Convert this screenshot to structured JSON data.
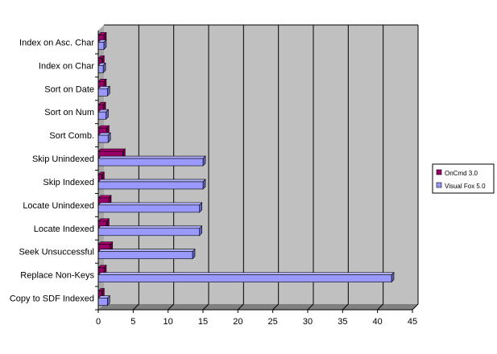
{
  "chart_data": {
    "type": "bar",
    "orientation": "horizontal",
    "style": "3d-clustered",
    "categories": [
      "Index on Asc. Char",
      "Index on Char",
      "Sort on Date",
      "Sort on Num",
      "Sort Comb.",
      "Skip Unindexed",
      "Skip Indexed",
      "Locate Unindexed",
      "Locate Indexed",
      "Seek Unsuccessful",
      "Replace Non-Keys",
      "Copy to SDF Indexed"
    ],
    "series": [
      {
        "name": "OnCmd 3.0",
        "color": "#990066",
        "values": [
          0.8,
          0.5,
          0.8,
          0.7,
          1.2,
          3.5,
          0.5,
          1.5,
          1.2,
          1.7,
          0.8,
          0.5
        ]
      },
      {
        "name": "Visual Fox 5.0",
        "color": "#9999ff",
        "values": [
          0.8,
          0.7,
          1.3,
          1.1,
          1.4,
          15,
          15,
          14.5,
          14.5,
          13.5,
          42,
          1.3
        ]
      }
    ],
    "xlim": [
      0,
      45
    ],
    "xticks": [
      "0",
      "5",
      "10",
      "15",
      "20",
      "25",
      "30",
      "35",
      "40",
      "45"
    ],
    "grid": true,
    "legend_position": "right",
    "plot_background": "#c0c0c0"
  }
}
